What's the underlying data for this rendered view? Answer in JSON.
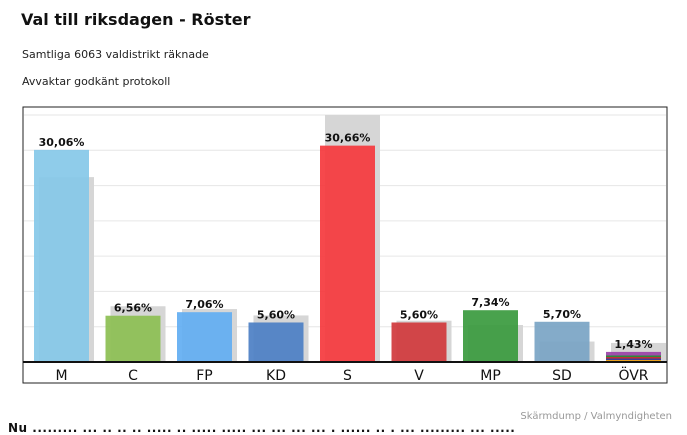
{
  "header": {
    "title": "Val till riksdagen - Röster",
    "counted": "Samtliga 6063 valdistrikt räknade",
    "status": "Avvaktar godkänt protokoll"
  },
  "footer": {
    "credit": "Skärmdump / Valmyndigheten",
    "cutoff_text": "Nu ......... ... .. .. .. ..... .. ..... ..... ... ... ... ... . ...... .. . ... ......... ... ....."
  },
  "chart_data": {
    "type": "bar",
    "categories": [
      "M",
      "C",
      "FP",
      "KD",
      "S",
      "V",
      "MP",
      "SD",
      "ÖVR"
    ],
    "series": [
      {
        "values": [
          30.06,
          6.56,
          7.06,
          5.6,
          30.66,
          5.6,
          7.34,
          5.7,
          1.43
        ],
        "labels": [
          "30,06%",
          "6,56%",
          "7,06%",
          "5,60%",
          "30,66%",
          "5,60%",
          "7,34%",
          "5,70%",
          "1,43%"
        ]
      },
      {
        "values": [
          26.2,
          7.9,
          7.5,
          6.6,
          35.0,
          5.85,
          5.24,
          2.9,
          2.7
        ]
      }
    ],
    "colors": [
      "#86c8e8",
      "#8cbf52",
      "#62aef2",
      "#4c7fc4",
      "#f5383d",
      "#d0383c",
      "#3a9a3e",
      "#7aa4c4",
      "#9a42a8"
    ],
    "previous_color": "#d6d6d6",
    "ylim": [
      0,
      35
    ],
    "grid": true,
    "legend": "none"
  }
}
